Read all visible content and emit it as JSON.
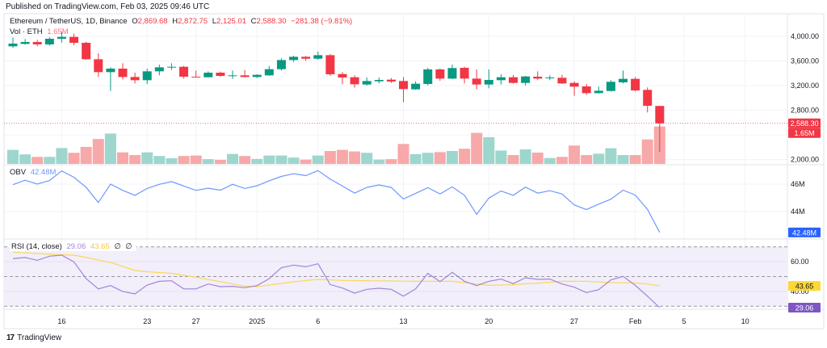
{
  "published": "Published on TradingView.com, Feb 03, 2025 09:46 UTC",
  "legend": {
    "symbol": "Ethereum / TetherUS, 1D, Binance",
    "o_label": "O",
    "o": "2,869.68",
    "h_label": "H",
    "h": "2,872.75",
    "l_label": "L",
    "l": "2,125.01",
    "c_label": "C",
    "c": "2,588.30",
    "change": "−281.38 (−9.81%)",
    "vol_label": "Vol · ETH",
    "vol": "1.65M"
  },
  "obv_legend": {
    "label": "OBV",
    "value": "42.48M"
  },
  "rsi_legend": {
    "label": "RSI (14, close)",
    "value": "29.06",
    "ma": "43.65",
    "extra1": "∅",
    "extra2": "∅"
  },
  "price_axis": [
    {
      "label": "4,000.00",
      "value": 4000
    },
    {
      "label": "3,600.00",
      "value": 3600
    },
    {
      "label": "3,200.00",
      "value": 3200
    },
    {
      "label": "2,800.00",
      "value": 2800
    },
    {
      "label": "2,000.00",
      "value": 2000
    }
  ],
  "price_badge": "2,588.30",
  "vol_badge": "1.65M",
  "obv_axis": [
    {
      "label": "46M",
      "value": 46
    },
    {
      "label": "44M",
      "value": 44
    }
  ],
  "obv_badge": "42.48M",
  "rsi_axis": [
    {
      "label": "60.00",
      "value": 60
    },
    {
      "label": "40.00",
      "value": 40
    }
  ],
  "rsi_ma_badge": "43.65",
  "rsi_badge": "29.06",
  "time_axis": [
    {
      "label": "16",
      "date": "2024-12-16"
    },
    {
      "label": "23",
      "date": "2024-12-23"
    },
    {
      "label": "27",
      "date": "2024-12-27"
    },
    {
      "label": "2025",
      "date": "2025-01-01"
    },
    {
      "label": "6",
      "date": "2025-01-06"
    },
    {
      "label": "13",
      "date": "2025-01-13"
    },
    {
      "label": "20",
      "date": "2025-01-20"
    },
    {
      "label": "27",
      "date": "2025-01-27"
    },
    {
      "label": "Feb",
      "date": "2025-02-01"
    },
    {
      "label": "5",
      "date": "2025-02-05"
    },
    {
      "label": "10",
      "date": "2025-02-10"
    }
  ],
  "footer": {
    "logo": "17",
    "brand": "TradingView"
  },
  "colors": {
    "up": "#089981",
    "down": "#F23645",
    "vol_up": "#9dd6cd",
    "vol_down": "#f7a8a8",
    "obv": "#6f97ff",
    "rsi": "#a286d8",
    "rsi_ma": "#fbd85a",
    "rsi_band": "#f2eefa",
    "obv_badge": "#2962ff",
    "rsi_badge": "#7e57c2",
    "ma_badge": "#fdd835"
  },
  "chart_data": {
    "type": "candlestick",
    "columns": [
      "date",
      "open",
      "high",
      "low",
      "close",
      "volume_M"
    ],
    "candles": [
      [
        "2024-12-12",
        3838,
        3978,
        3812,
        3882,
        0.62
      ],
      [
        "2024-12-13",
        3877,
        3956,
        3865,
        3908,
        0.42
      ],
      [
        "2024-12-14",
        3908,
        3943,
        3838,
        3869,
        0.31
      ],
      [
        "2024-12-15",
        3869,
        3987,
        3847,
        3961,
        0.31
      ],
      [
        "2024-12-16",
        3961,
        4074,
        3899,
        3991,
        0.7
      ],
      [
        "2024-12-17",
        3991,
        4044,
        3856,
        3895,
        0.49
      ],
      [
        "2024-12-18",
        3895,
        3912,
        3620,
        3628,
        0.75
      ],
      [
        "2024-12-19",
        3628,
        3725,
        3340,
        3419,
        1.1
      ],
      [
        "2024-12-20",
        3419,
        3497,
        3113,
        3476,
        1.34
      ],
      [
        "2024-12-21",
        3476,
        3563,
        3301,
        3340,
        0.51
      ],
      [
        "2024-12-22",
        3340,
        3410,
        3235,
        3288,
        0.39
      ],
      [
        "2024-12-23",
        3288,
        3476,
        3227,
        3432,
        0.51
      ],
      [
        "2024-12-24",
        3432,
        3541,
        3367,
        3497,
        0.35
      ],
      [
        "2024-12-25",
        3497,
        3563,
        3454,
        3506,
        0.25
      ],
      [
        "2024-12-26",
        3506,
        3520,
        3314,
        3345,
        0.35
      ],
      [
        "2024-12-27",
        3345,
        3445,
        3332,
        3336,
        0.37
      ],
      [
        "2024-12-28",
        3336,
        3432,
        3332,
        3410,
        0.21
      ],
      [
        "2024-12-29",
        3410,
        3428,
        3345,
        3358,
        0.18
      ],
      [
        "2024-12-30",
        3358,
        3445,
        3310,
        3367,
        0.44
      ],
      [
        "2024-12-31",
        3367,
        3454,
        3332,
        3340,
        0.35
      ],
      [
        "2025-01-01",
        3340,
        3384,
        3323,
        3375,
        0.22
      ],
      [
        "2025-01-02",
        3367,
        3519,
        3358,
        3467,
        0.37
      ],
      [
        "2025-01-03",
        3467,
        3642,
        3445,
        3615,
        0.37
      ],
      [
        "2025-01-04",
        3615,
        3685,
        3585,
        3668,
        0.28
      ],
      [
        "2025-01-05",
        3668,
        3681,
        3602,
        3637,
        0.19
      ],
      [
        "2025-01-06",
        3637,
        3755,
        3620,
        3694,
        0.37
      ],
      [
        "2025-01-07",
        3694,
        3712,
        3358,
        3384,
        0.57
      ],
      [
        "2025-01-08",
        3388,
        3419,
        3222,
        3332,
        0.62
      ],
      [
        "2025-01-09",
        3336,
        3367,
        3166,
        3222,
        0.55
      ],
      [
        "2025-01-10",
        3218,
        3332,
        3201,
        3275,
        0.49
      ],
      [
        "2025-01-11",
        3270,
        3332,
        3235,
        3292,
        0.19
      ],
      [
        "2025-01-12",
        3297,
        3323,
        3244,
        3266,
        0.21
      ],
      [
        "2025-01-13",
        3275,
        3340,
        2930,
        3144,
        0.88
      ],
      [
        "2025-01-14",
        3140,
        3270,
        3131,
        3231,
        0.43
      ],
      [
        "2025-01-15",
        3227,
        3489,
        3201,
        3463,
        0.49
      ],
      [
        "2025-01-16",
        3463,
        3476,
        3279,
        3314,
        0.52
      ],
      [
        "2025-01-17",
        3314,
        3541,
        3305,
        3485,
        0.57
      ],
      [
        "2025-01-18",
        3489,
        3506,
        3235,
        3314,
        0.67
      ],
      [
        "2025-01-19",
        3314,
        3463,
        3139,
        3218,
        1.37
      ],
      [
        "2025-01-20",
        3218,
        3463,
        3157,
        3292,
        1.18
      ],
      [
        "2025-01-21",
        3288,
        3384,
        3218,
        3336,
        0.59
      ],
      [
        "2025-01-22",
        3336,
        3371,
        3235,
        3244,
        0.39
      ],
      [
        "2025-01-23",
        3244,
        3358,
        3201,
        3349,
        0.64
      ],
      [
        "2025-01-24",
        3345,
        3432,
        3288,
        3314,
        0.5
      ],
      [
        "2025-01-25",
        3323,
        3367,
        3288,
        3332,
        0.26
      ],
      [
        "2025-01-26",
        3327,
        3375,
        3227,
        3235,
        0.31
      ],
      [
        "2025-01-27",
        3244,
        3270,
        3035,
        3183,
        0.81
      ],
      [
        "2025-01-28",
        3187,
        3227,
        3052,
        3078,
        0.39
      ],
      [
        "2025-01-29",
        3078,
        3183,
        3070,
        3117,
        0.45
      ],
      [
        "2025-01-30",
        3113,
        3288,
        3104,
        3262,
        0.69
      ],
      [
        "2025-01-31",
        3253,
        3445,
        3235,
        3310,
        0.39
      ],
      [
        "2025-02-01",
        3310,
        3340,
        3104,
        3122,
        0.39
      ],
      [
        "2025-02-02",
        3131,
        3170,
        2764,
        2873,
        1.08
      ],
      [
        "2025-02-03",
        2869.68,
        2872.75,
        2125.01,
        2588.3,
        1.65
      ]
    ],
    "obv_M": [
      45.96,
      46.28,
      46.0,
      46.26,
      46.96,
      46.5,
      45.76,
      44.66,
      46.0,
      45.54,
      45.18,
      45.68,
      45.98,
      46.18,
      45.86,
      45.54,
      45.7,
      45.56,
      45.98,
      45.68,
      45.88,
      46.24,
      46.56,
      46.76,
      46.62,
      46.98,
      46.36,
      45.86,
      45.34,
      45.76,
      45.94,
      45.76,
      44.92,
      45.32,
      45.74,
      45.28,
      45.8,
      45.18,
      43.8,
      44.98,
      45.5,
      45.18,
      45.78,
      45.34,
      45.52,
      45.28,
      44.48,
      44.14,
      44.54,
      44.9,
      45.56,
      45.2,
      44.16,
      42.48
    ],
    "rsi": [
      62.0,
      62.8,
      60.9,
      63.7,
      64.4,
      59.9,
      48.6,
      41.7,
      43.9,
      39.9,
      38.3,
      44.3,
      46.8,
      47.2,
      41.7,
      41.7,
      45.0,
      43.2,
      43.4,
      42.5,
      43.9,
      48.6,
      55.9,
      57.7,
      56.6,
      58.6,
      44.6,
      42.3,
      38.8,
      41.4,
      42.1,
      41.4,
      36.8,
      41.7,
      52.1,
      46.6,
      52.8,
      46.8,
      43.9,
      46.8,
      48.3,
      45.2,
      49.2,
      48.1,
      48.3,
      45.0,
      42.8,
      39.2,
      41.2,
      47.7,
      50.1,
      44.1,
      36.8,
      29.06
    ],
    "rsi_ma": [
      66.4,
      66.0,
      65.5,
      65.0,
      64.6,
      64.4,
      62.8,
      61.1,
      59.5,
      56.8,
      54.1,
      53.2,
      52.7,
      52.2,
      50.8,
      49.5,
      48.0,
      46.5,
      45.0,
      43.6,
      43.2,
      44.3,
      45.4,
      46.4,
      47.4,
      48.1,
      47.7,
      47.4,
      47.3,
      47.2,
      47.1,
      47.0,
      46.9,
      46.8,
      46.8,
      46.8,
      46.8,
      45.9,
      45.0,
      44.1,
      44.3,
      44.5,
      45.1,
      45.6,
      46.2,
      46.8,
      46.8,
      46.8,
      46.4,
      45.9,
      45.8,
      45.7,
      45.0,
      43.65
    ],
    "rsi_levels": [
      70,
      50,
      30
    ],
    "price_ylim": [
      2000,
      4000
    ],
    "grid": true
  }
}
